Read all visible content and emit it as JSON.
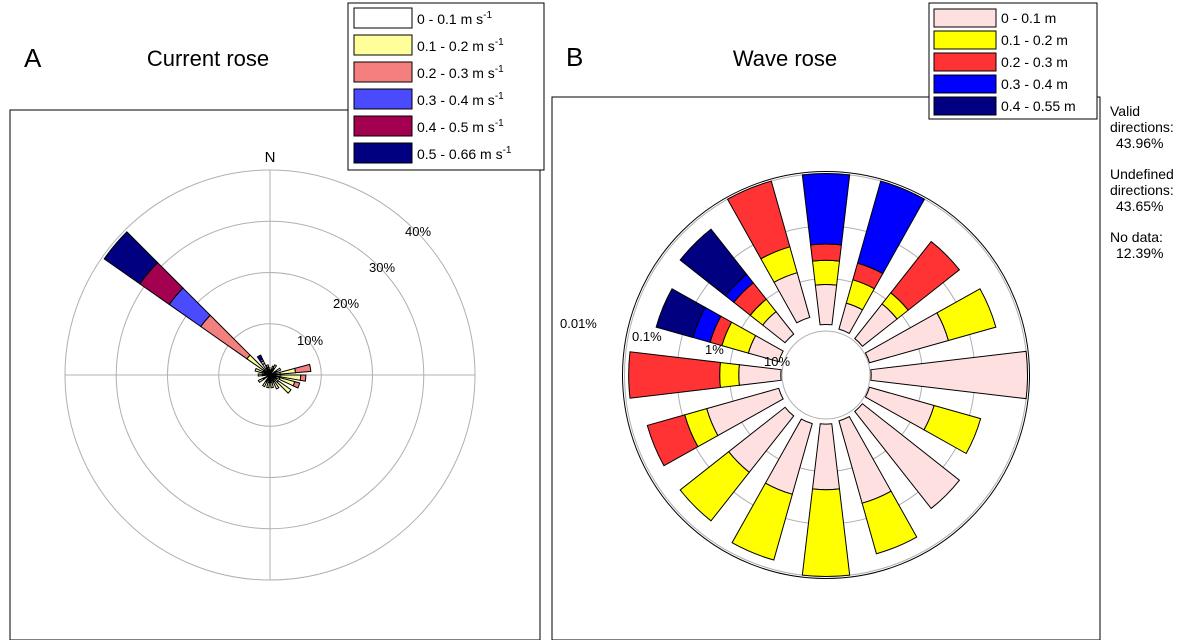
{
  "panel_a": {
    "letter": "A",
    "title": "Current rose",
    "north_label": "N",
    "ring_labels": [
      "10%",
      "20%",
      "30%",
      "40%"
    ],
    "legend": [
      {
        "label": "0 - 0.1 m s",
        "sup": "-1",
        "color": "#ffffff"
      },
      {
        "label": "0.1 - 0.2 m s",
        "sup": "-1",
        "color": "#ffff99"
      },
      {
        "label": "0.2 - 0.3 m s",
        "sup": "-1",
        "color": "#f47f7f"
      },
      {
        "label": "0.3 - 0.4 m s",
        "sup": "-1",
        "color": "#4a4aff"
      },
      {
        "label": "0.4 - 0.5 m s",
        "sup": "-1",
        "color": "#a30050"
      },
      {
        "label": "0.5 - 0.66 m s",
        "sup": "-1",
        "color": "#000080"
      }
    ]
  },
  "panel_b": {
    "letter": "B",
    "title": "Wave rose",
    "ring_labels": [
      "10%",
      "1%",
      "0.1%",
      "0.01%"
    ],
    "legend": [
      {
        "label": "0 - 0.1 m",
        "color": "#ffe0e0"
      },
      {
        "label": "0.1 - 0.2 m",
        "color": "#ffff00"
      },
      {
        "label": "0.2 - 0.3 m",
        "color": "#ff3333"
      },
      {
        "label": "0.3 - 0.4 m",
        "color": "#0000ff"
      },
      {
        "label": "0.4 - 0.55 m",
        "color": "#000080"
      }
    ]
  },
  "side_notes": {
    "valid_label": "Valid directions:",
    "valid_value": "43.96%",
    "undefined_label": "Undefined directions:",
    "undefined_value": "43.65%",
    "nodata_label": "No data:",
    "nodata_value": "12.39%"
  },
  "chart_data": [
    {
      "type": "polar-bar",
      "title": "Current rose",
      "scale": "linear",
      "rlim": [
        0,
        40
      ],
      "ring_ticks": [
        10,
        20,
        30,
        40
      ],
      "sector_count": 36,
      "series_names": [
        "0 - 0.1 m s-1",
        "0.1 - 0.2 m s-1",
        "0.2 - 0.3 m s-1",
        "0.3 - 0.4 m s-1",
        "0.4 - 0.5 m s-1",
        "0.5 - 0.66 m s-1"
      ],
      "colors": [
        "#ffffff",
        "#ffff99",
        "#f47f7f",
        "#4a4aff",
        "#a30050",
        "#000080"
      ],
      "sectors": [
        {
          "direction_deg": 0,
          "values": [
            1.0,
            0,
            0,
            0,
            0,
            0
          ]
        },
        {
          "direction_deg": 20,
          "values": [
            1.0,
            0.8,
            0,
            0,
            0,
            0
          ]
        },
        {
          "direction_deg": 30,
          "values": [
            1.0,
            1.2,
            0,
            0,
            0,
            0
          ]
        },
        {
          "direction_deg": 60,
          "values": [
            1.0,
            1.3,
            0,
            0,
            0,
            0
          ]
        },
        {
          "direction_deg": 80,
          "values": [
            2.0,
            3.0,
            3.0,
            0,
            0,
            0
          ]
        },
        {
          "direction_deg": 95,
          "values": [
            2.0,
            4.0,
            1.0,
            0,
            0,
            0
          ]
        },
        {
          "direction_deg": 110,
          "values": [
            2.0,
            3.0,
            1.0,
            0,
            0,
            0
          ]
        },
        {
          "direction_deg": 130,
          "values": [
            2.0,
            3.0,
            0,
            0,
            0,
            0
          ]
        },
        {
          "direction_deg": 150,
          "values": [
            1.5,
            1.5,
            0,
            0,
            0,
            0
          ]
        },
        {
          "direction_deg": 170,
          "values": [
            1.5,
            1.0,
            0,
            0,
            0,
            0
          ]
        },
        {
          "direction_deg": 190,
          "values": [
            1.5,
            1.0,
            0,
            0,
            0,
            0
          ]
        },
        {
          "direction_deg": 210,
          "values": [
            1.5,
            1.0,
            0,
            0,
            0,
            0
          ]
        },
        {
          "direction_deg": 240,
          "values": [
            1.5,
            1.0,
            0,
            0,
            0,
            0
          ]
        },
        {
          "direction_deg": 270,
          "values": [
            1.5,
            0.8,
            0,
            0,
            0,
            0
          ]
        },
        {
          "direction_deg": 290,
          "values": [
            1.5,
            1.5,
            0,
            0,
            0,
            0
          ]
        },
        {
          "direction_deg": 310,
          "values": [
            1.5,
            4.0,
            11.0,
            7.5,
            7.0,
            8.5
          ]
        },
        {
          "direction_deg": 330,
          "values": [
            2.5,
            0.5,
            0,
            0.5,
            0,
            0.8
          ]
        },
        {
          "direction_deg": 345,
          "values": [
            1.5,
            0.5,
            0,
            0,
            0,
            0
          ]
        }
      ]
    },
    {
      "type": "polar-bar",
      "title": "Wave rose",
      "scale": "log",
      "rlim": [
        0.01,
        10
      ],
      "ring_ticks": [
        10,
        1,
        0.1,
        0.01
      ],
      "sector_count": 16,
      "series_names": [
        "0 - 0.1 m",
        "0.1 - 0.2 m",
        "0.2 - 0.3 m",
        "0.3 - 0.4 m",
        "0.4 - 0.55 m"
      ],
      "colors": [
        "#ffe0e0",
        "#ffff00",
        "#ff3333",
        "#0000ff",
        "#000080"
      ],
      "sectors": [
        {
          "direction_deg": 0,
          "boundaries": [
            7.5,
            1.3,
            0.45,
            0.22,
            0.01
          ]
        },
        {
          "direction_deg": 22.5,
          "boundaries": [
            8.5,
            2.6,
            0.9,
            0.42,
            0.01
          ]
        },
        {
          "direction_deg": 45,
          "boundaries": [
            9.0,
            1.3,
            0.7,
            0.04
          ]
        },
        {
          "direction_deg": 67.5,
          "boundaries": [
            9.5,
            0.26,
            0.03
          ]
        },
        {
          "direction_deg": 90,
          "boundaries": [
            9.5,
            0.01
          ]
        },
        {
          "direction_deg": 112.5,
          "boundaries": [
            9.5,
            0.5,
            0.06
          ]
        },
        {
          "direction_deg": 135,
          "boundaries": [
            9.0,
            0.04
          ]
        },
        {
          "direction_deg": 157.5,
          "boundaries": [
            8.5,
            0.2,
            0.02
          ]
        },
        {
          "direction_deg": 180,
          "boundaries": [
            8.0,
            0.45,
            0.01
          ]
        },
        {
          "direction_deg": 202.5,
          "boundaries": [
            7.5,
            0.3,
            0.015
          ]
        },
        {
          "direction_deg": 225,
          "boundaries": [
            7.0,
            0.3,
            0.02
          ]
        },
        {
          "direction_deg": 247.5,
          "boundaries": [
            8.0,
            0.3,
            0.11,
            0.02
          ]
        },
        {
          "direction_deg": 270,
          "boundaries": [
            9.5,
            1.5,
            0.65,
            0.012
          ]
        },
        {
          "direction_deg": 292.5,
          "boundaries": [
            8.0,
            2.0,
            0.6,
            0.35,
            0.16,
            0.03
          ]
        },
        {
          "direction_deg": 315,
          "boundaries": [
            7.0,
            2.0,
            1.0,
            0.4,
            0.25,
            0.02
          ]
        },
        {
          "direction_deg": 337.5,
          "boundaries": [
            5.0,
            0.65,
            0.2,
            0.01
          ]
        }
      ]
    }
  ]
}
